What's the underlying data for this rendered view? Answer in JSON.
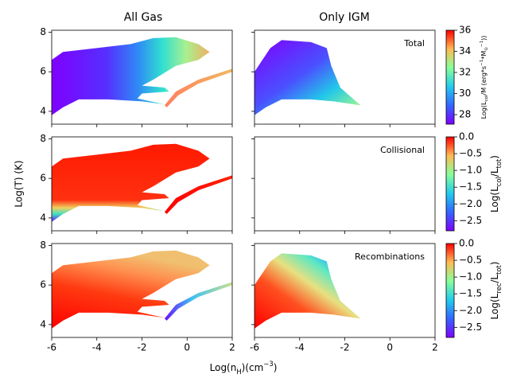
{
  "chart_data": [
    {
      "type": "scatter",
      "title": "All Gas",
      "xlim": [
        -6,
        2
      ],
      "ylim": [
        3.35,
        8.1
      ],
      "xticks": [
        -6,
        -4,
        -2,
        0,
        2
      ],
      "yticks": [
        4,
        6,
        8
      ],
      "show_xticklabels": false,
      "show_yticklabels": true
    },
    {
      "type": "scatter",
      "title": "Only IGM",
      "annotation": "Total",
      "xlim": [
        -6,
        2
      ],
      "ylim": [
        3.35,
        8.1
      ],
      "xticks": [
        -6,
        -4,
        -2,
        0,
        2
      ],
      "yticks": [
        4,
        6,
        8
      ],
      "show_xticklabels": false,
      "show_yticklabels": false
    },
    {
      "type": "scatter",
      "xlim": [
        -6,
        2
      ],
      "ylim": [
        3.35,
        8.1
      ],
      "xticks": [
        -6,
        -4,
        -2,
        0,
        2
      ],
      "yticks": [
        4,
        6,
        8
      ],
      "show_xticklabels": false,
      "show_yticklabels": true
    },
    {
      "type": "scatter",
      "annotation": "Collisional",
      "xlim": [
        -6,
        2
      ],
      "ylim": [
        3.35,
        8.1
      ],
      "xticks": [
        -6,
        -4,
        -2,
        0,
        2
      ],
      "yticks": [
        4,
        6,
        8
      ],
      "show_xticklabels": false,
      "show_yticklabels": false
    },
    {
      "type": "scatter",
      "xlim": [
        -6,
        2
      ],
      "ylim": [
        3.35,
        8.1
      ],
      "xticks": [
        -6,
        -4,
        -2,
        0,
        2
      ],
      "yticks": [
        4,
        6,
        8
      ],
      "show_xticklabels": true,
      "show_yticklabels": true
    },
    {
      "type": "scatter",
      "annotation": "Recombinations",
      "xlim": [
        -6,
        2
      ],
      "ylim": [
        3.35,
        8.1
      ],
      "xticks": [
        -6,
        -4,
        -2,
        0,
        2
      ],
      "yticks": [
        4,
        6,
        8
      ],
      "show_xticklabels": true,
      "show_yticklabels": false
    }
  ],
  "figure": {
    "x_label": [
      {
        "text": "Log(n"
      },
      {
        "text": "H",
        "sub": true
      },
      {
        "text": ")(cm"
      },
      {
        "text": "−3",
        "sup": true
      },
      {
        "text": ")"
      }
    ],
    "y_label": "Log(T) (K)",
    "colorbars": [
      {
        "ylim": [
          27.1,
          36
        ],
        "yticks": [
          28,
          30,
          32,
          34,
          36
        ],
        "colormap": "rainbow",
        "label": [
          {
            "text": "Log(L"
          },
          {
            "text": "col",
            "sub": true
          },
          {
            "text": "/M (erg*s"
          },
          {
            "text": "−1",
            "sup": true
          },
          {
            "text": "*M"
          },
          {
            "text": "⊙",
            "sub": true
          },
          {
            "text": "−1",
            "sup": true
          },
          {
            "text": "))"
          }
        ]
      },
      {
        "ylim": [
          -2.8,
          0
        ],
        "yticks": [
          {
            "value": 0,
            "label": "0.0"
          },
          {
            "value": -0.5,
            "label": "−0.5"
          },
          {
            "value": -1,
            "label": "−1.0"
          },
          {
            "value": -1.5,
            "label": "−1.5"
          },
          {
            "value": -2,
            "label": "−2.0"
          },
          {
            "value": -2.5,
            "label": "−2.5"
          }
        ],
        "colormap": "rainbow",
        "label": [
          {
            "text": "Log(L"
          },
          {
            "text": "col",
            "sub": true
          },
          {
            "text": "/L"
          },
          {
            "text": "tot",
            "sub": true
          },
          {
            "text": ")"
          }
        ]
      },
      {
        "ylim": [
          -2.8,
          0
        ],
        "yticks": [
          {
            "value": 0,
            "label": "0.0"
          },
          {
            "value": -0.5,
            "label": "−0.5"
          },
          {
            "value": -1,
            "label": "−1.0"
          },
          {
            "value": -1.5,
            "label": "−1.5"
          },
          {
            "value": -2,
            "label": "−2.0"
          },
          {
            "value": -2.5,
            "label": "−2.5"
          }
        ],
        "colormap": "rainbow",
        "label": [
          {
            "text": "Log(L"
          },
          {
            "text": "rec",
            "sub": true
          },
          {
            "text": "/L"
          },
          {
            "text": "tot",
            "sub": true
          },
          {
            "text": ")"
          }
        ]
      }
    ]
  }
}
